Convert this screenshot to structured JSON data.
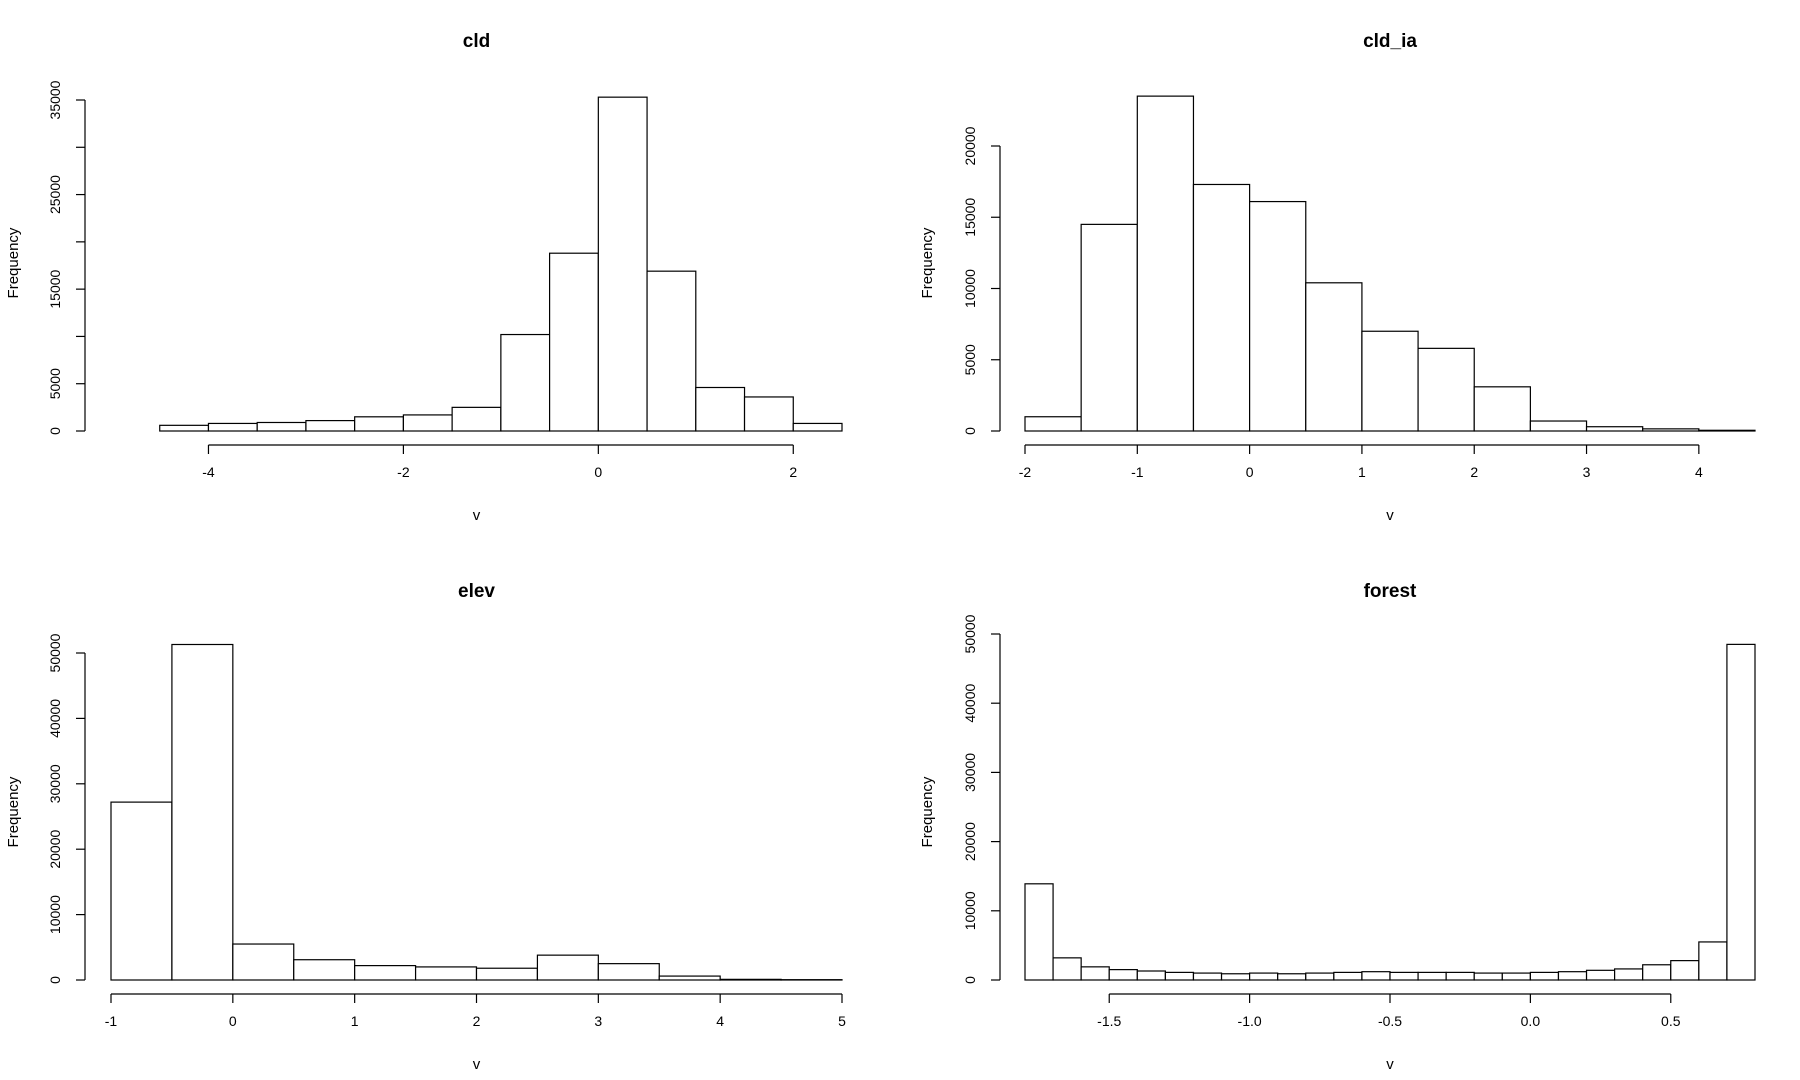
{
  "chart_data": [
    {
      "type": "bar",
      "title": "cld",
      "xlabel": "v",
      "ylabel": "Frequency",
      "bin_edges": [
        -5,
        -4.5,
        -4,
        -3.5,
        -3,
        -2.5,
        -2,
        -1.5,
        -1,
        -0.5,
        0,
        0.5,
        1,
        1.5,
        2,
        2.5
      ],
      "values": [
        0,
        600,
        800,
        900,
        1100,
        1500,
        1700,
        2500,
        10200,
        18800,
        35300,
        16900,
        4600,
        3600,
        800
      ],
      "xticks": [
        "-4",
        "-2",
        "0",
        "2"
      ],
      "xtick_values": [
        -4,
        -2,
        0,
        2
      ],
      "yticks": [
        "0",
        "5000",
        "15000",
        "25000",
        "35000"
      ],
      "ytick_values": [
        0,
        5000,
        15000,
        25000,
        35000
      ],
      "ytick_minor": [
        10000,
        20000,
        30000
      ],
      "xaxis_range": [
        -4,
        2
      ],
      "xlim": [
        -5,
        2.5
      ],
      "ylim": [
        0,
        35000
      ]
    },
    {
      "type": "bar",
      "title": "cld_ia",
      "xlabel": "v",
      "ylabel": "Frequency",
      "bin_edges": [
        -2,
        -1.5,
        -1,
        -0.5,
        0,
        0.5,
        1,
        1.5,
        2,
        2.5,
        3,
        3.5,
        4,
        4.5
      ],
      "values": [
        1000,
        14500,
        23500,
        17300,
        16100,
        10400,
        7000,
        5800,
        3100,
        700,
        300,
        150,
        50
      ],
      "xticks": [
        "-2",
        "-1",
        "0",
        "1",
        "2",
        "3",
        "4"
      ],
      "xtick_values": [
        -2,
        -1,
        0,
        1,
        2,
        3,
        4
      ],
      "yticks": [
        "0",
        "5000",
        "10000",
        "15000",
        "20000"
      ],
      "ytick_values": [
        0,
        5000,
        10000,
        15000,
        20000
      ],
      "ytick_minor": [],
      "xaxis_range": [
        -2,
        4
      ],
      "xlim": [
        -2,
        4.5
      ],
      "ylim": [
        0,
        20000
      ]
    },
    {
      "type": "bar",
      "title": "elev",
      "xlabel": "v",
      "ylabel": "Frequency",
      "bin_edges": [
        -1,
        -0.5,
        0,
        0.5,
        1,
        1.5,
        2,
        2.5,
        3,
        3.5,
        4,
        4.5,
        5
      ],
      "values": [
        27200,
        51300,
        5500,
        3100,
        2200,
        2000,
        1800,
        3800,
        2500,
        600,
        100,
        50
      ],
      "xticks": [
        "-1",
        "0",
        "1",
        "2",
        "3",
        "4",
        "5"
      ],
      "xtick_values": [
        -1,
        0,
        1,
        2,
        3,
        4,
        5
      ],
      "yticks": [
        "0",
        "10000",
        "20000",
        "30000",
        "40000",
        "50000"
      ],
      "ytick_values": [
        0,
        10000,
        20000,
        30000,
        40000,
        50000
      ],
      "ytick_minor": [],
      "xaxis_range": [
        -1,
        5
      ],
      "xlim": [
        -1,
        5
      ],
      "ylim": [
        0,
        50000
      ]
    },
    {
      "type": "bar",
      "title": "forest",
      "xlabel": "v",
      "ylabel": "Frequency",
      "bin_edges": [
        -1.8,
        -1.7,
        -1.6,
        -1.5,
        -1.4,
        -1.3,
        -1.2,
        -1.1,
        -1.0,
        -0.9,
        -0.8,
        -0.7,
        -0.6,
        -0.5,
        -0.4,
        -0.3,
        -0.2,
        -0.1,
        0.0,
        0.1,
        0.2,
        0.3,
        0.4,
        0.5,
        0.6,
        0.7,
        0.8
      ],
      "values": [
        13900,
        3200,
        1900,
        1500,
        1300,
        1100,
        1000,
        900,
        1000,
        900,
        1000,
        1100,
        1200,
        1100,
        1100,
        1100,
        1000,
        1000,
        1100,
        1200,
        1400,
        1600,
        2200,
        2800,
        5500,
        48500
      ],
      "xticks": [
        "-1.5",
        "-1.0",
        "-0.5",
        "0.0",
        "0.5"
      ],
      "xtick_values": [
        -1.5,
        -1.0,
        -0.5,
        0.0,
        0.5
      ],
      "yticks": [
        "0",
        "10000",
        "20000",
        "30000",
        "40000",
        "50000"
      ],
      "ytick_values": [
        0,
        10000,
        20000,
        30000,
        40000,
        50000
      ],
      "ytick_minor": [],
      "xaxis_range": [
        -1.5,
        0.5
      ],
      "xlim": [
        -1.8,
        0.8
      ],
      "ylim": [
        0,
        50000
      ]
    }
  ]
}
